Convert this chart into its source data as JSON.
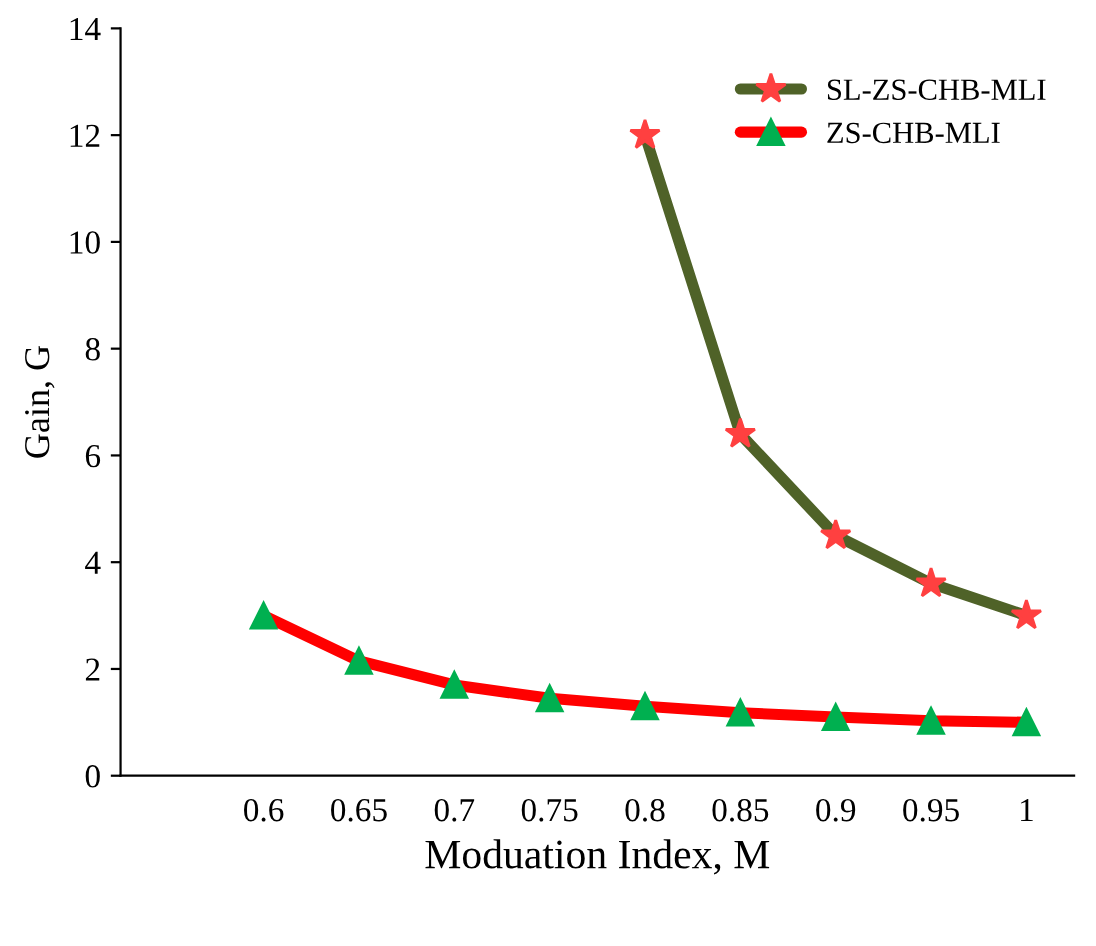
{
  "chart_data": {
    "type": "line",
    "xlabel": "Moduation Index, M",
    "ylabel": "Gain, G",
    "categories": [
      null,
      "0.6",
      "0.65",
      "0.7",
      "0.75",
      "0.8",
      "0.85",
      "0.9",
      "0.95",
      "1"
    ],
    "series": [
      {
        "name": "SL-ZS-CHB-MLI",
        "color": "#4f6228",
        "marker": "star",
        "values": [
          null,
          null,
          null,
          null,
          null,
          12,
          6.4,
          4.5,
          3.6,
          3.0
        ]
      },
      {
        "name": "ZS-CHB-MLI",
        "color": "#ff0000",
        "marker": "triangle",
        "values": [
          null,
          3.0,
          2.15,
          1.7,
          1.45,
          1.3,
          1.18,
          1.1,
          1.03,
          1.0
        ]
      }
    ],
    "ylim": [
      0,
      14
    ],
    "yticks": [
      0,
      2,
      4,
      6,
      8,
      10,
      12,
      14
    ],
    "grid": false,
    "legend": "top right"
  }
}
